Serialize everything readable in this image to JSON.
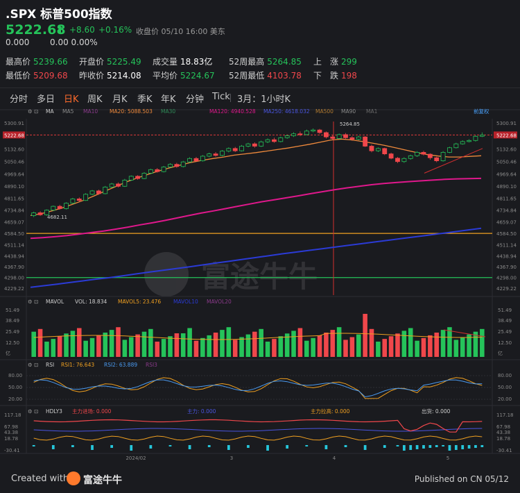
{
  "header": {
    "title": ".SPX 标普500指数",
    "price": "5222.68",
    "change": "+8.60",
    "change_pct": "+0.16%",
    "status": "收盘价 05/10 16:00 美东",
    "sub_change": "0.000",
    "sub_pct": "0.00 0.00%"
  },
  "stats": [
    {
      "label": "最高价",
      "value": "5239.66",
      "color": "green"
    },
    {
      "label": "开盘价",
      "value": "5225.49",
      "color": "green"
    },
    {
      "label": "成交量",
      "value": "18.83亿",
      "color": "white"
    },
    {
      "label": "52周最高",
      "value": "5264.85",
      "color": "green"
    },
    {
      "label": "上　涨",
      "value": "299",
      "color": "green"
    },
    {
      "label": "最低价",
      "value": "5209.68",
      "color": "red"
    },
    {
      "label": "昨收价",
      "value": "5214.08",
      "color": "white"
    },
    {
      "label": "平均价",
      "value": "5224.67",
      "color": "green"
    },
    {
      "label": "52周最低",
      "value": "4103.78",
      "color": "red"
    },
    {
      "label": "下　跌",
      "value": "198",
      "color": "red"
    }
  ],
  "tabs": [
    "分时",
    "多日",
    "日K",
    "周K",
    "月K",
    "季K",
    "年K",
    "分钟",
    "Tick",
    "3月：1小时K"
  ],
  "active_tab": "日K",
  "main_legend": {
    "ma": "MA",
    "ma5": "MA5",
    "ma10": "MA10",
    "ma20": "MA20: 5088.503",
    "ma30": "MA30",
    "ma120": "MA120: 4940.528",
    "ma250": "MA250: 4618.032",
    "ma500": "MA500",
    "ma90": "MA90",
    "ma1": "MA1",
    "adjust": "前复权"
  },
  "main_axis": [
    "5300.91",
    "5222.68",
    "5132.60",
    "5050.46",
    "4969.64",
    "4890.10",
    "4811.65",
    "4734.84",
    "4659.07",
    "4584.50",
    "4511.14",
    "4438.94",
    "4367.90",
    "4298.00",
    "4229.22"
  ],
  "annotations": {
    "high": "5264.85",
    "low": "4682.11"
  },
  "vol_legend": {
    "name": "MAVOL",
    "vol": "VOL: 18.834",
    "mavol5": "MAVOL5: 23.476",
    "mavol10": "MAVOL10",
    "mavol20": "MAVOL20"
  },
  "vol_axis": [
    "51.49",
    "38.49",
    "25.49",
    "12.50",
    "亿"
  ],
  "rsi_legend": {
    "name": "RSI",
    "rsi1": "RSI1: 76.643",
    "rsi2": "RSI2: 63.889",
    "rsi3": "RSI3"
  },
  "rsi_axis": [
    "80.00",
    "50.00",
    "20.00"
  ],
  "hdly_legend": {
    "name": "HDLY3",
    "inflow": "主力进场: 0.000",
    "mid": "主力: 0.000",
    "pull": "主力拉高: 0.000",
    "out": "出货: 0.000"
  },
  "hdly_axis": [
    "117.18",
    "67.98",
    "43.38",
    "18.78",
    "-30.41"
  ],
  "x_labels": [
    "2024/02",
    "3",
    "4",
    "5"
  ],
  "watermark": "富途牛牛",
  "footer": {
    "created_with": "Created with",
    "brand": "富途牛牛",
    "published": "Published on CN 05/12"
  },
  "colors": {
    "up": "#25c35a",
    "down": "#f0474b",
    "ma20": "#f08a3c",
    "ma120": "#e0188c",
    "ma250": "#2b3bd6",
    "accent": "#ff6b2c"
  },
  "chart_data": {
    "type": "candlestick",
    "title": ".SPX 标普500指数 日K",
    "ylim": [
      4229.22,
      5300.91
    ],
    "reference_lines": [
      {
        "value": 5222.68,
        "color": "#e03a3a",
        "style": "dashed"
      },
      {
        "value": 4584.5,
        "color": "#f0a020"
      },
      {
        "value": 4298.0,
        "color": "#25c35a"
      }
    ],
    "series": [
      {
        "name": "MA20",
        "values": [
          4700,
          4712,
          4730,
          4750,
          4775,
          4800,
          4830,
          4860,
          4890,
          4920,
          4945,
          4968,
          4990,
          5010,
          5028,
          5045,
          5058,
          5070,
          5080,
          5092,
          5100,
          5108,
          5118,
          5128,
          5138,
          5150,
          5162,
          5176,
          5190,
          5196,
          5190,
          5180,
          5168,
          5155,
          5140,
          5124,
          5108,
          5095,
          5086,
          5080,
          5080,
          5084,
          5088
        ]
      },
      {
        "name": "MA120",
        "values": [
          4552,
          4557,
          4563,
          4570,
          4580,
          4590,
          4600,
          4612,
          4625,
          4640,
          4653,
          4668,
          4684,
          4700,
          4716,
          4730,
          4745,
          4760,
          4775,
          4790,
          4802,
          4815,
          4828,
          4842,
          4855,
          4868,
          4880,
          4890,
          4900,
          4908,
          4914,
          4920,
          4925,
          4930,
          4935,
          4938,
          4940,
          4941
        ]
      },
      {
        "name": "MA250",
        "values": [
          4235,
          4245,
          4255,
          4266,
          4277,
          4288,
          4298,
          4310,
          4322,
          4334,
          4345,
          4356,
          4368,
          4380,
          4392,
          4404,
          4416,
          4428,
          4440,
          4452,
          4463,
          4474,
          4485,
          4496,
          4507,
          4518,
          4529,
          4540,
          4551,
          4562,
          4573,
          4584,
          4595,
          4606,
          4618
        ]
      }
    ],
    "candles": [
      [
        4700,
        4718,
        4690,
        4725
      ],
      [
        4718,
        4705,
        4698,
        4728
      ],
      [
        4705,
        4735,
        4700,
        4740
      ],
      [
        4735,
        4760,
        4730,
        4765
      ],
      [
        4760,
        4745,
        4738,
        4770
      ],
      [
        4745,
        4780,
        4740,
        4786
      ],
      [
        4780,
        4808,
        4775,
        4815
      ],
      [
        4808,
        4798,
        4790,
        4818
      ],
      [
        4798,
        4838,
        4795,
        4845
      ],
      [
        4838,
        4860,
        4832,
        4866
      ],
      [
        4860,
        4842,
        4835,
        4868
      ],
      [
        4842,
        4885,
        4838,
        4892
      ],
      [
        4885,
        4905,
        4878,
        4912
      ],
      [
        4905,
        4890,
        4882,
        4915
      ],
      [
        4890,
        4930,
        4886,
        4938
      ],
      [
        4930,
        4955,
        4925,
        4960
      ],
      [
        4955,
        4940,
        4932,
        4962
      ],
      [
        4940,
        4975,
        4936,
        4982
      ],
      [
        4975,
        4998,
        4970,
        5004
      ],
      [
        4998,
        4985,
        4978,
        5008
      ],
      [
        4985,
        5015,
        4980,
        5022
      ],
      [
        5015,
        5032,
        5010,
        5040
      ],
      [
        5032,
        5018,
        5010,
        5042
      ],
      [
        5018,
        5048,
        5012,
        5055
      ],
      [
        5048,
        5070,
        5042,
        5078
      ],
      [
        5070,
        5055,
        5048,
        5080
      ],
      [
        5055,
        5085,
        5050,
        5092
      ],
      [
        5085,
        5100,
        5078,
        5108
      ],
      [
        5100,
        5090,
        5082,
        5112
      ],
      [
        5090,
        5118,
        5085,
        5125
      ],
      [
        5118,
        5135,
        5110,
        5142
      ],
      [
        5135,
        5120,
        5112,
        5145
      ],
      [
        5120,
        5150,
        5115,
        5158
      ],
      [
        5150,
        5165,
        5142,
        5172
      ],
      [
        5165,
        5150,
        5140,
        5175
      ],
      [
        5150,
        5178,
        5145,
        5186
      ],
      [
        5178,
        5192,
        5170,
        5200
      ],
      [
        5192,
        5180,
        5172,
        5205
      ],
      [
        5180,
        5205,
        5175,
        5212
      ],
      [
        5205,
        5218,
        5198,
        5225
      ],
      [
        5218,
        5230,
        5210,
        5240
      ],
      [
        5230,
        5225,
        5215,
        5245
      ],
      [
        5225,
        5248,
        5220,
        5258
      ],
      [
        5248,
        5255,
        5240,
        5265
      ],
      [
        5255,
        5238,
        5230,
        5262
      ],
      [
        5238,
        5210,
        5200,
        5245
      ],
      [
        5210,
        5200,
        5190,
        5220
      ],
      [
        5200,
        5225,
        5195,
        5232
      ],
      [
        5225,
        5205,
        5198,
        5235
      ],
      [
        5205,
        5195,
        5185,
        5215
      ],
      [
        5195,
        5210,
        5188,
        5218
      ],
      [
        5210,
        5150,
        5145,
        5215
      ],
      [
        5150,
        5120,
        5110,
        5160
      ],
      [
        5120,
        5135,
        5112,
        5142
      ],
      [
        5135,
        5100,
        5092,
        5140
      ],
      [
        5100,
        5072,
        5065,
        5108
      ],
      [
        5072,
        5050,
        5040,
        5080
      ],
      [
        5050,
        5070,
        5042,
        5078
      ],
      [
        5070,
        5088,
        5062,
        5095
      ],
      [
        5088,
        5110,
        5080,
        5118
      ],
      [
        5110,
        5098,
        5090,
        5120
      ],
      [
        5098,
        5075,
        5062,
        5104
      ],
      [
        5075,
        5055,
        5046,
        5082
      ],
      [
        5055,
        5110,
        5050,
        5118
      ],
      [
        5110,
        5140,
        5105,
        5146
      ],
      [
        5140,
        5165,
        5135,
        5172
      ],
      [
        5165,
        5180,
        5160,
        5188
      ],
      [
        5180,
        5187,
        5174,
        5195
      ],
      [
        5187,
        5214,
        5180,
        5220
      ],
      [
        5214,
        5222,
        5209,
        5239
      ]
    ]
  }
}
